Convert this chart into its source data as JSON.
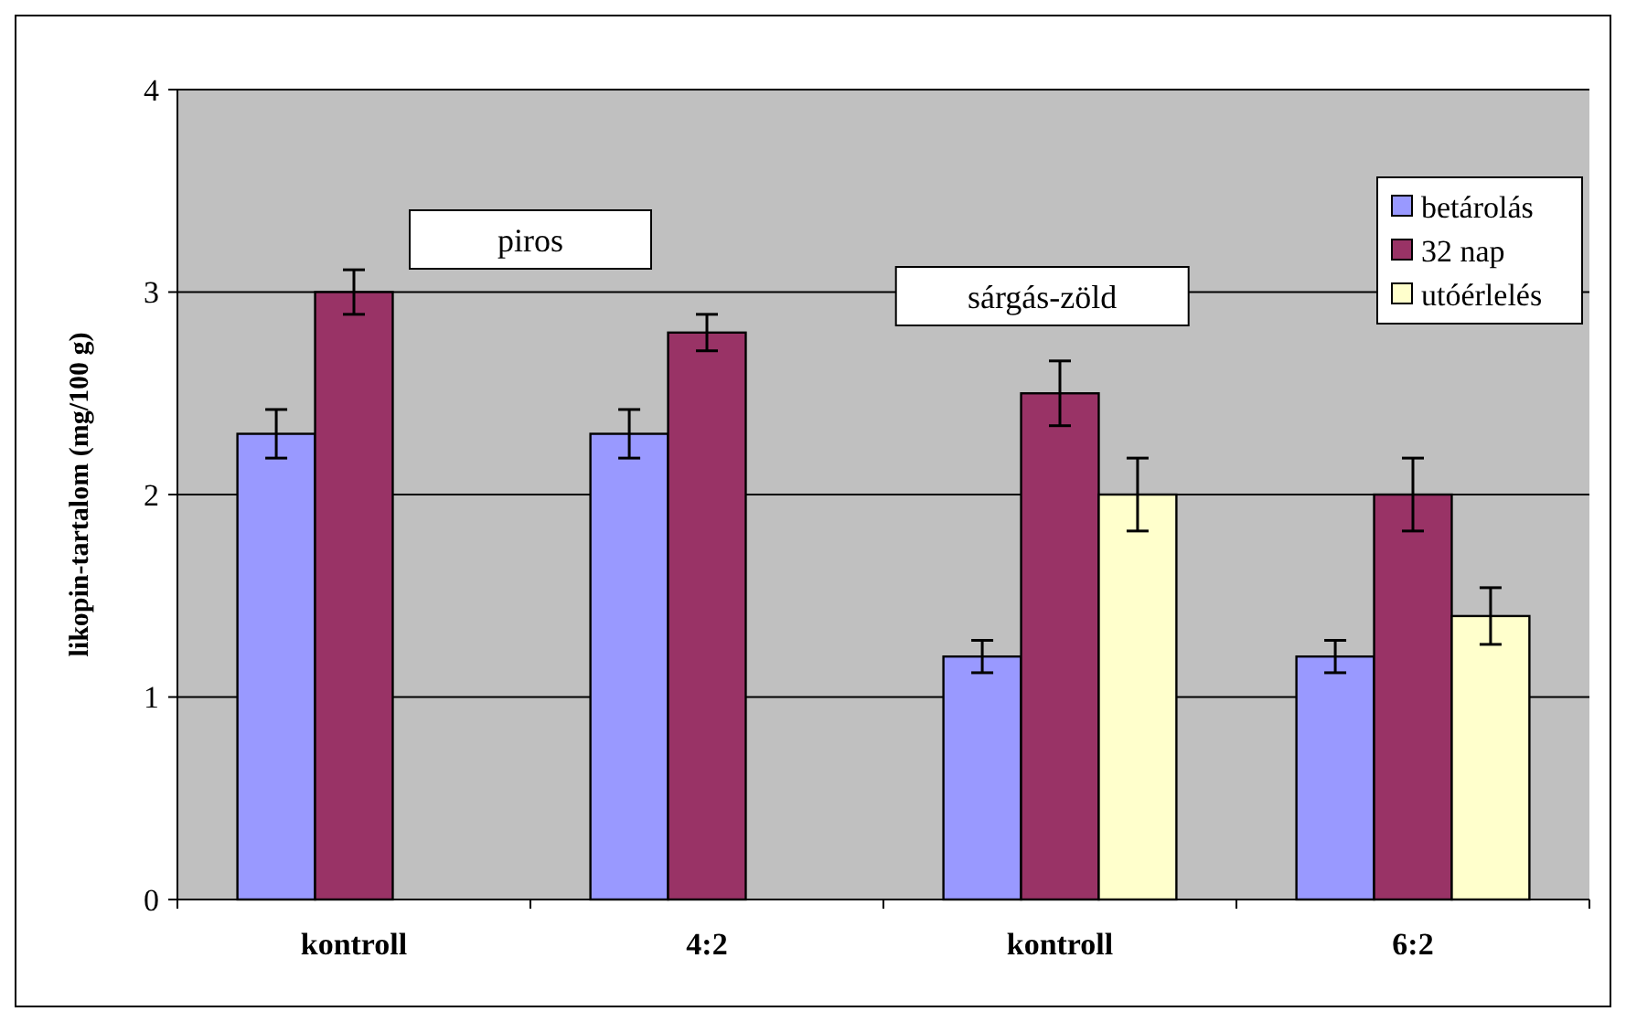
{
  "chart_data": {
    "type": "bar",
    "ylabel": "likopin-tartalom (mg/100 g)",
    "categories": [
      "kontroll",
      "4:2",
      "kontroll",
      "6:2"
    ],
    "series": [
      {
        "name": "betárolás",
        "color": "#9999ff",
        "values": [
          2.3,
          2.3,
          1.2,
          1.2
        ],
        "errors": [
          0.12,
          0.12,
          0.08,
          0.08
        ]
      },
      {
        "name": "32 nap",
        "color": "#993366",
        "values": [
          3.0,
          2.8,
          2.5,
          2.0
        ],
        "errors": [
          0.11,
          0.09,
          0.16,
          0.18
        ]
      },
      {
        "name": "utóérlelés",
        "color": "#ffffcc",
        "values": [
          null,
          null,
          2.0,
          1.4
        ],
        "errors": [
          null,
          null,
          0.18,
          0.14
        ]
      }
    ],
    "ylim": [
      0,
      4
    ],
    "yticks": [
      0,
      1,
      2,
      3,
      4
    ],
    "grid": "y",
    "legend": "top right",
    "annotations": [
      "piros",
      "sárgás-zöld"
    ]
  }
}
